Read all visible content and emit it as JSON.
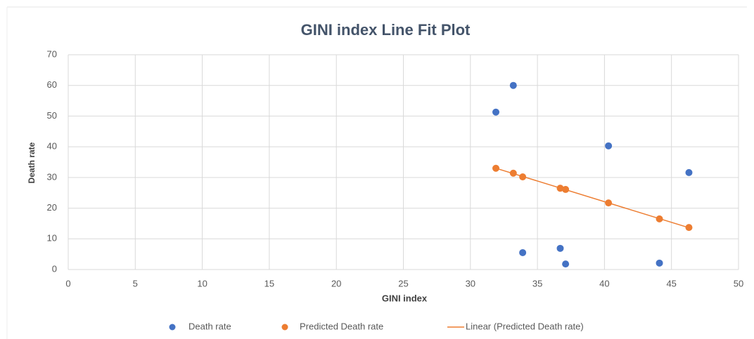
{
  "chart_data": {
    "type": "scatter",
    "title": "GINI index Line Fit  Plot",
    "x_label": "GINI index",
    "y_label": "Death rate",
    "xlim": [
      0,
      50
    ],
    "xticks": [
      0,
      5,
      10,
      15,
      20,
      25,
      30,
      35,
      40,
      45,
      50
    ],
    "ylim": [
      0,
      70
    ],
    "yticks": [
      0,
      10,
      20,
      30,
      40,
      50,
      60,
      70
    ],
    "grid": true,
    "series": [
      {
        "name": "Death rate",
        "color": "#4472c4",
        "x": [
          31.9,
          33.2,
          33.9,
          36.7,
          37.1,
          40.3,
          44.1,
          46.3
        ],
        "values": [
          51.3,
          60,
          5.5,
          6.9,
          1.8,
          40.3,
          2.1,
          31.6
        ]
      },
      {
        "name": "Predicted Death rate",
        "color": "#ed7d31",
        "x": [
          31.9,
          33.2,
          33.9,
          36.7,
          37.1,
          40.3,
          44.1,
          46.3
        ],
        "values": [
          33,
          31.4,
          30.2,
          26.5,
          26.1,
          21.7,
          16.5,
          13.7
        ],
        "trendline": {
          "name": "Linear (Predicted Death rate)",
          "color": "#ed7d31"
        }
      }
    ]
  }
}
